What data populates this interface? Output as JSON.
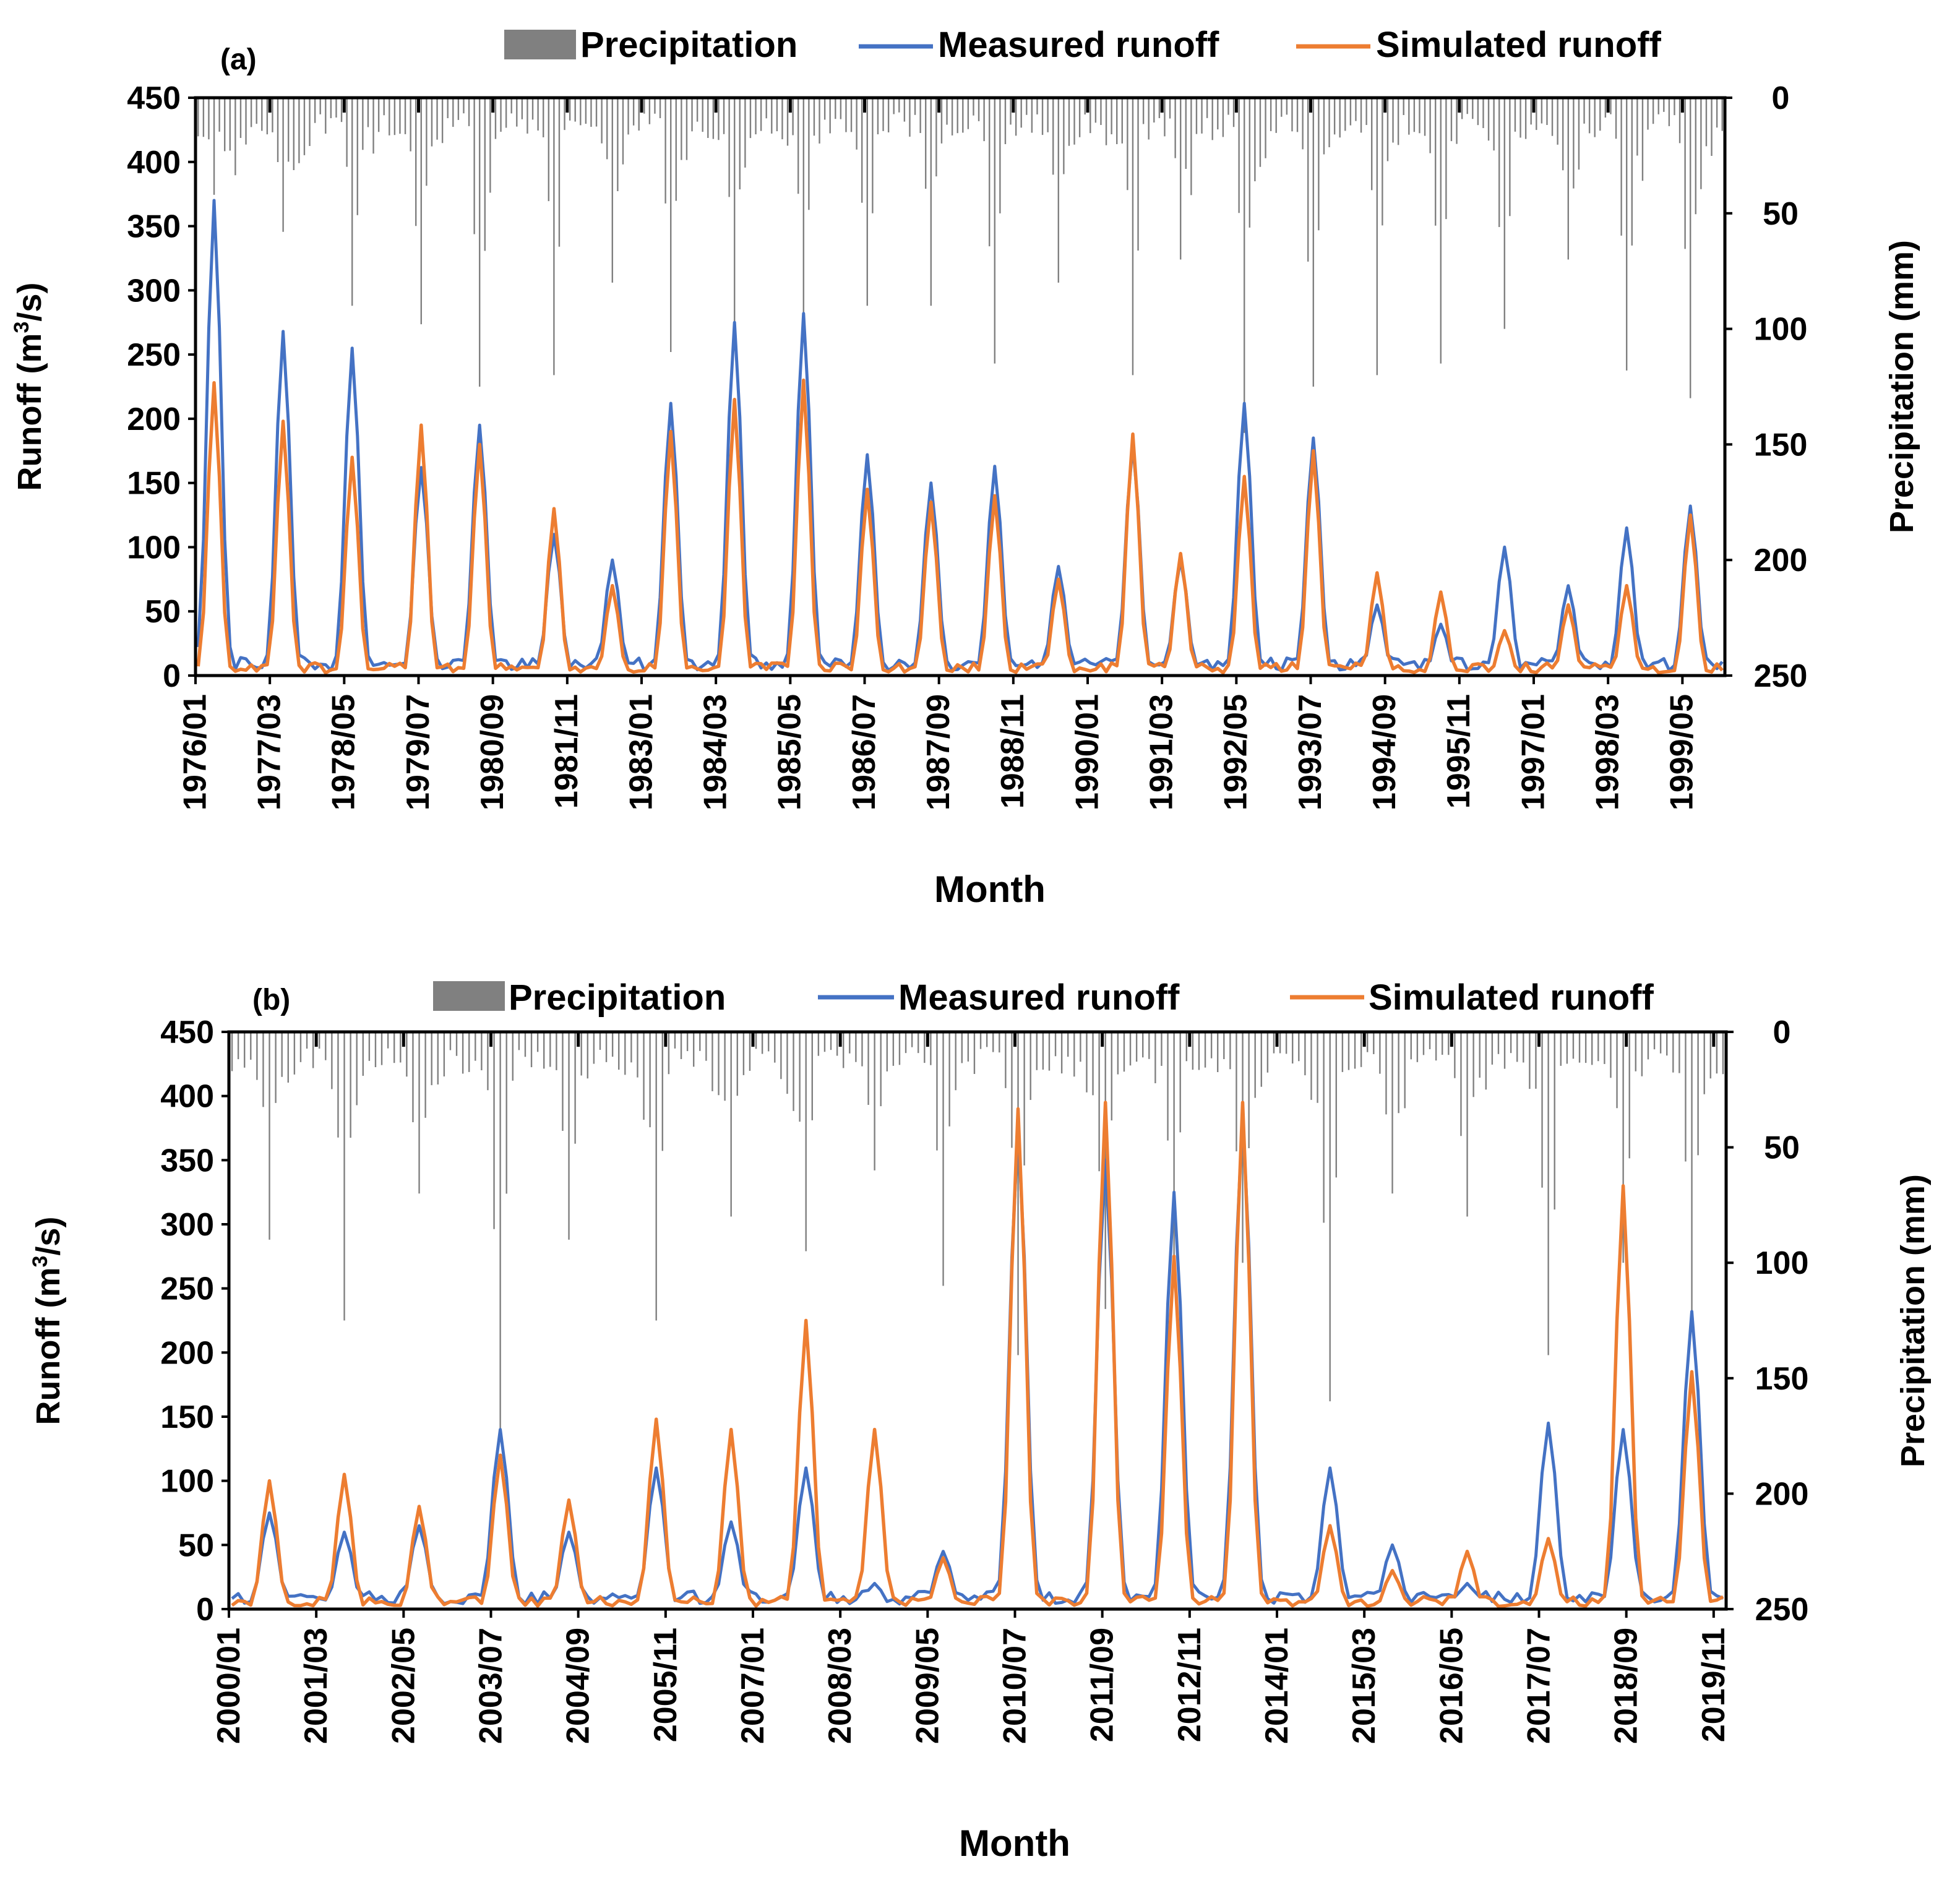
{
  "chart_data": [
    {
      "type": "line",
      "panel_label": "(a)",
      "xlabel": "Month",
      "ylabel_left": "Runoff (m³/s)",
      "ylabel_left_parts": [
        "Runoff (m",
        "3",
        "/s)"
      ],
      "ylabel_right": "Precipitation (mm)",
      "ylim_left": [
        0,
        450
      ],
      "ylim_right_inverted": [
        0,
        250
      ],
      "yticks_left": [
        "0",
        "50",
        "100",
        "150",
        "200",
        "250",
        "300",
        "350",
        "400",
        "450"
      ],
      "yticks_right": [
        "0",
        "50",
        "100",
        "150",
        "200",
        "250"
      ],
      "x_start": "1976/01",
      "n_months": 288,
      "xtick_labels": [
        "1976/01",
        "1977/03",
        "1978/05",
        "1979/07",
        "1980/09",
        "1981/11",
        "1983/01",
        "1984/03",
        "1985/05",
        "1986/07",
        "1987/09",
        "1988/11",
        "1990/01",
        "1991/03",
        "1992/05",
        "1993/07",
        "1994/09",
        "1995/11",
        "1997/01",
        "1998/03",
        "1999/05"
      ],
      "legend": {
        "precipitation": "Precipitation",
        "measured": "Measured runoff",
        "simulated": "Simulated runoff"
      },
      "colors": {
        "precipitation": "#808080",
        "measured": "#4472C4",
        "simulated": "#ED7D31",
        "axis": "#000000"
      },
      "annual_peaks": [
        {
          "year": 1976,
          "month": 4,
          "measured": 370,
          "simulated": 228,
          "precip": 42
        },
        {
          "year": 1977,
          "month": 5,
          "measured": 268,
          "simulated": 198,
          "precip": 58
        },
        {
          "year": 1978,
          "month": 6,
          "measured": 255,
          "simulated": 170,
          "precip": 90
        },
        {
          "year": 1979,
          "month": 7,
          "measured": 162,
          "simulated": 195,
          "precip": 98
        },
        {
          "year": 1980,
          "month": 6,
          "measured": 195,
          "simulated": 180,
          "precip": 125
        },
        {
          "year": 1981,
          "month": 8,
          "measured": 110,
          "simulated": 130,
          "precip": 120
        },
        {
          "year": 1982,
          "month": 7,
          "measured": 90,
          "simulated": 70,
          "precip": 80
        },
        {
          "year": 1983,
          "month": 6,
          "measured": 212,
          "simulated": 190,
          "precip": 110
        },
        {
          "year": 1984,
          "month": 6,
          "measured": 275,
          "simulated": 215,
          "precip": 100
        },
        {
          "year": 1985,
          "month": 7,
          "measured": 282,
          "simulated": 230,
          "precip": 95
        },
        {
          "year": 1986,
          "month": 7,
          "measured": 172,
          "simulated": 145,
          "precip": 90
        },
        {
          "year": 1987,
          "month": 7,
          "measured": 150,
          "simulated": 135,
          "precip": 90
        },
        {
          "year": 1988,
          "month": 7,
          "measured": 163,
          "simulated": 140,
          "precip": 115
        },
        {
          "year": 1989,
          "month": 7,
          "measured": 85,
          "simulated": 75,
          "precip": 80
        },
        {
          "year": 1990,
          "month": 9,
          "measured": 180,
          "simulated": 188,
          "precip": 120
        },
        {
          "year": 1991,
          "month": 6,
          "measured": 90,
          "simulated": 95,
          "precip": 70
        },
        {
          "year": 1992,
          "month": 6,
          "measured": 212,
          "simulated": 155,
          "precip": 145
        },
        {
          "year": 1993,
          "month": 7,
          "measured": 185,
          "simulated": 175,
          "precip": 125
        },
        {
          "year": 1994,
          "month": 7,
          "measured": 55,
          "simulated": 80,
          "precip": 120
        },
        {
          "year": 1995,
          "month": 7,
          "measured": 40,
          "simulated": 65,
          "precip": 115
        },
        {
          "year": 1996,
          "month": 7,
          "measured": 100,
          "simulated": 35,
          "precip": 100
        },
        {
          "year": 1997,
          "month": 7,
          "measured": 70,
          "simulated": 55,
          "precip": 70
        },
        {
          "year": 1998,
          "month": 6,
          "measured": 115,
          "simulated": 70,
          "precip": 118
        },
        {
          "year": 1999,
          "month": 6,
          "measured": 132,
          "simulated": 125,
          "precip": 130
        }
      ]
    },
    {
      "type": "line",
      "panel_label": "(b)",
      "xlabel": "Month",
      "ylabel_left": "Runoff (m³/s)",
      "ylabel_left_parts": [
        "Runoff (m",
        "3",
        "/s)"
      ],
      "ylabel_right": "Precipitation (mm)",
      "ylim_left": [
        0,
        450
      ],
      "ylim_right_inverted": [
        0,
        250
      ],
      "yticks_left": [
        "0",
        "50",
        "100",
        "150",
        "200",
        "250",
        "300",
        "350",
        "400",
        "450"
      ],
      "yticks_right": [
        "0",
        "50",
        "100",
        "150",
        "200",
        "250"
      ],
      "x_start": "2000/01",
      "n_months": 240,
      "xtick_labels": [
        "2000/01",
        "2001/03",
        "2002/05",
        "2003/07",
        "2004/09",
        "2005/11",
        "2007/01",
        "2008/03",
        "2009/05",
        "2010/07",
        "2011/09",
        "2012/11",
        "2014/01",
        "2015/03",
        "2016/05",
        "2017/07",
        "2018/09",
        "2019/11"
      ],
      "legend": {
        "precipitation": "Precipitation",
        "measured": "Measured runoff",
        "simulated": "Simulated runoff"
      },
      "colors": {
        "precipitation": "#808080",
        "measured": "#4472C4",
        "simulated": "#ED7D31",
        "axis": "#000000"
      },
      "annual_peaks": [
        {
          "year": 2000,
          "month": 7,
          "measured": 75,
          "simulated": 100,
          "precip": 90
        },
        {
          "year": 2001,
          "month": 7,
          "measured": 60,
          "simulated": 105,
          "precip": 125
        },
        {
          "year": 2002,
          "month": 7,
          "measured": 65,
          "simulated": 80,
          "precip": 70
        },
        {
          "year": 2003,
          "month": 8,
          "measured": 140,
          "simulated": 120,
          "precip": 175
        },
        {
          "year": 2004,
          "month": 7,
          "measured": 60,
          "simulated": 85,
          "precip": 90
        },
        {
          "year": 2005,
          "month": 9,
          "measured": 110,
          "simulated": 148,
          "precip": 125
        },
        {
          "year": 2006,
          "month": 9,
          "measured": 68,
          "simulated": 140,
          "precip": 80
        },
        {
          "year": 2007,
          "month": 9,
          "measured": 110,
          "simulated": 225,
          "precip": 95
        },
        {
          "year": 2008,
          "month": 8,
          "measured": 20,
          "simulated": 140,
          "precip": 60
        },
        {
          "year": 2009,
          "month": 7,
          "measured": 45,
          "simulated": 40,
          "precip": 110
        },
        {
          "year": 2010,
          "month": 7,
          "measured": 375,
          "simulated": 390,
          "precip": 140
        },
        {
          "year": 2011,
          "month": 9,
          "measured": 350,
          "simulated": 395,
          "precip": 120
        },
        {
          "year": 2012,
          "month": 8,
          "measured": 325,
          "simulated": 275,
          "precip": 105
        },
        {
          "year": 2013,
          "month": 7,
          "measured": 385,
          "simulated": 395,
          "precip": 100
        },
        {
          "year": 2014,
          "month": 9,
          "measured": 110,
          "simulated": 65,
          "precip": 160
        },
        {
          "year": 2015,
          "month": 7,
          "measured": 50,
          "simulated": 30,
          "precip": 70
        },
        {
          "year": 2016,
          "month": 7,
          "measured": 20,
          "simulated": 45,
          "precip": 80
        },
        {
          "year": 2017,
          "month": 8,
          "measured": 145,
          "simulated": 55,
          "precip": 140
        },
        {
          "year": 2018,
          "month": 8,
          "measured": 140,
          "simulated": 330,
          "precip": 100
        },
        {
          "year": 2019,
          "month": 7,
          "measured": 232,
          "simulated": 185,
          "precip": 130
        }
      ]
    }
  ]
}
